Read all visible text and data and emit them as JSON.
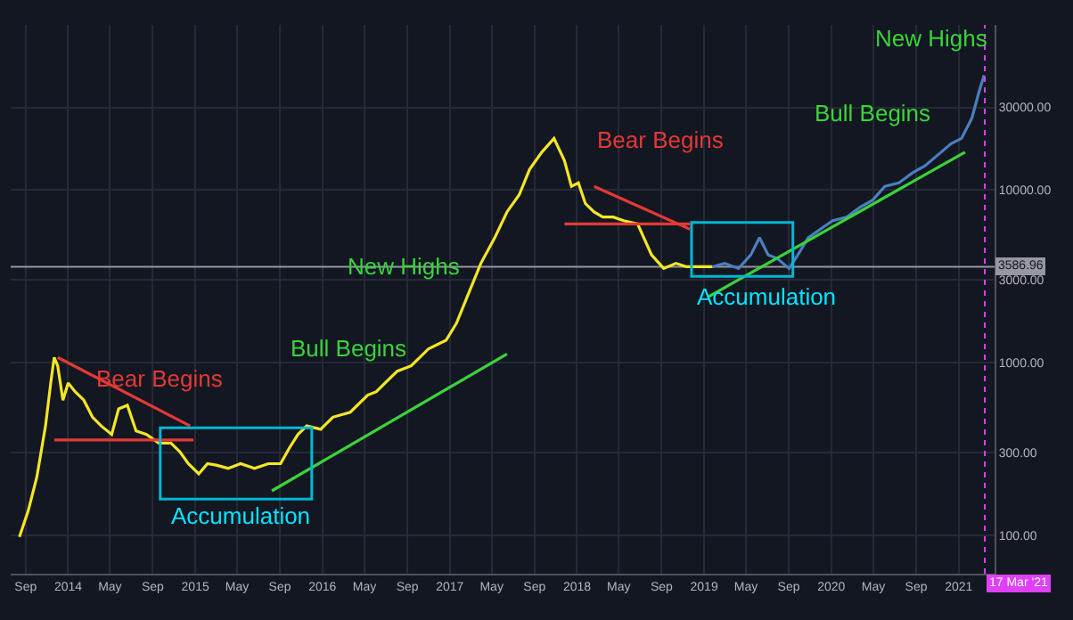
{
  "chart_data": {
    "type": "line",
    "log": "y",
    "grid": true,
    "xlim": [
      "2013-07-20",
      "2021-04-14"
    ],
    "xticks": [
      {
        "value": "2013-09-01",
        "label": "Sep"
      },
      {
        "value": "2014-01-01",
        "label": "2014"
      },
      {
        "value": "2014-05-01",
        "label": "May"
      },
      {
        "value": "2014-09-01",
        "label": "Sep"
      },
      {
        "value": "2015-01-01",
        "label": "2015"
      },
      {
        "value": "2015-05-01",
        "label": "May"
      },
      {
        "value": "2015-09-01",
        "label": "Sep"
      },
      {
        "value": "2016-01-01",
        "label": "2016"
      },
      {
        "value": "2016-05-01",
        "label": "May"
      },
      {
        "value": "2016-09-01",
        "label": "Sep"
      },
      {
        "value": "2017-01-01",
        "label": "2017"
      },
      {
        "value": "2017-05-01",
        "label": "May"
      },
      {
        "value": "2017-09-01",
        "label": "Sep"
      },
      {
        "value": "2018-01-01",
        "label": "2018"
      },
      {
        "value": "2018-05-01",
        "label": "May"
      },
      {
        "value": "2018-09-01",
        "label": "Sep"
      },
      {
        "value": "2019-01-01",
        "label": "2019"
      },
      {
        "value": "2019-05-01",
        "label": "May"
      },
      {
        "value": "2019-09-01",
        "label": "Sep"
      },
      {
        "value": "2020-01-01",
        "label": "2020"
      },
      {
        "value": "2020-05-01",
        "label": "May"
      },
      {
        "value": "2020-09-01",
        "label": "Sep"
      },
      {
        "value": "2021-01-01",
        "label": "2021"
      }
    ],
    "ylim": [
      60,
      90000
    ],
    "yticks": [
      {
        "value": 100,
        "label": "100.00"
      },
      {
        "value": 300,
        "label": "300.00"
      },
      {
        "value": 1000,
        "label": "1000.00"
      },
      {
        "value": 3000,
        "label": "3000.00"
      },
      {
        "value": 10000,
        "label": "10000.00"
      },
      {
        "value": 30000,
        "label": "30000.00"
      }
    ],
    "series": [
      {
        "color": "#f5e625",
        "x": [
          "2013-08-14",
          "2013-09-08",
          "2013-10-03",
          "2013-10-28",
          "2013-11-12",
          "2013-11-22",
          "2013-12-02",
          "2013-12-17",
          "2014-01-01",
          "2014-01-21",
          "2014-02-15",
          "2014-03-12",
          "2014-04-06",
          "2014-05-06",
          "2014-05-26",
          "2014-06-20",
          "2014-07-15",
          "2014-08-14",
          "2014-09-18",
          "2014-10-23",
          "2014-11-17",
          "2014-12-12",
          "2015-01-11",
          "2015-02-05",
          "2015-03-02",
          "2015-04-06",
          "2015-05-11",
          "2015-06-20",
          "2015-07-30",
          "2015-09-03",
          "2015-09-28",
          "2015-10-23",
          "2015-11-17",
          "2015-12-27",
          "2016-01-31",
          "2016-03-21",
          "2016-05-10",
          "2016-06-04",
          "2016-06-29",
          "2016-08-03",
          "2016-09-12",
          "2016-11-01",
          "2016-12-21",
          "2017-01-20",
          "2017-02-19",
          "2017-03-31",
          "2017-05-10",
          "2017-06-14",
          "2017-07-19",
          "2017-08-18",
          "2017-09-22",
          "2017-10-27",
          "2017-11-26",
          "2017-12-16",
          "2018-01-05",
          "2018-01-25",
          "2018-02-19",
          "2018-03-16",
          "2018-04-15",
          "2018-05-15",
          "2018-06-24",
          "2018-08-03",
          "2018-09-07",
          "2018-10-12",
          "2018-11-11",
          "2018-12-06",
          "2018-12-31",
          "2019-01-25"
        ],
        "values": [
          98,
          138,
          217,
          430,
          762,
          1071,
          957,
          606,
          762,
          679,
          606,
          483,
          430,
          384,
          540,
          566,
          402,
          384,
          342,
          342,
          306,
          260,
          227,
          260,
          255,
          244,
          260,
          244,
          260,
          260,
          320,
          384,
          430,
          411,
          483,
          516,
          648,
          679,
          762,
          892,
          957,
          1203,
          1345,
          1690,
          2381,
          3754,
          5284,
          7443,
          9348,
          13140,
          16510,
          19830,
          14740,
          10470,
          10970,
          8330,
          7443,
          6950,
          6950,
          6630,
          6350,
          4200,
          3505,
          3754,
          3587,
          3587,
          3587,
          3587
        ]
      },
      {
        "color": "#4a7fc1",
        "x": [
          "2019-01-25",
          "2019-03-01",
          "2019-04-10",
          "2019-05-15",
          "2019-06-09",
          "2019-07-04",
          "2019-07-29",
          "2019-09-02",
          "2019-09-27",
          "2019-10-27",
          "2019-12-01",
          "2020-01-05",
          "2020-02-14",
          "2020-03-25",
          "2020-04-29",
          "2020-06-03",
          "2020-07-13",
          "2020-08-22",
          "2020-09-26",
          "2020-10-31",
          "2020-12-10",
          "2021-01-09",
          "2021-02-08",
          "2021-02-28",
          "2021-03-15"
        ],
        "values": [
          3587,
          3754,
          3505,
          4200,
          5284,
          4200,
          4020,
          3505,
          4200,
          5284,
          5920,
          6630,
          6950,
          7960,
          8720,
          10470,
          10970,
          12560,
          13770,
          15790,
          18510,
          19830,
          26060,
          36700,
          46100
        ]
      },
      {
        "color": "#e53935",
        "x": [
          "2013-12-02",
          "2014-12-17"
        ],
        "values": [
          1071,
          430
        ]
      },
      {
        "color": "#e53935",
        "x": [
          "2013-11-22",
          "2014-12-27"
        ],
        "values": [
          357,
          357
        ]
      },
      {
        "color": "#3ad43a",
        "x": [
          "2015-08-09",
          "2017-06-14"
        ],
        "values": [
          181,
          1122
        ]
      },
      {
        "color": "#e53935",
        "x": [
          "2018-02-19",
          "2018-11-21"
        ],
        "values": [
          10470,
          5920
        ]
      },
      {
        "color": "#e53935",
        "x": [
          "2017-11-26",
          "2018-11-21"
        ],
        "values": [
          6350,
          6350
        ]
      },
      {
        "color": "#3ad43a",
        "x": [
          "2019-01-10",
          "2021-01-19"
        ],
        "values": [
          2381,
          16510
        ]
      }
    ],
    "ref_lines": [
      {
        "axis": "y",
        "value": 3586.96,
        "label": "3586.96",
        "color": "#9598a1",
        "line_style": "solid"
      },
      {
        "axis": "x",
        "value": "2021-03-17",
        "label": "17 Mar '21",
        "color": "#e040fb",
        "line_style": "dotted"
      }
    ],
    "annotations": [
      "Bear Begins",
      "Accumulation",
      "Bull Begins",
      "New Highs",
      "Bear Begins",
      "Accumulation",
      "Bull Begins",
      "New Highs"
    ]
  }
}
